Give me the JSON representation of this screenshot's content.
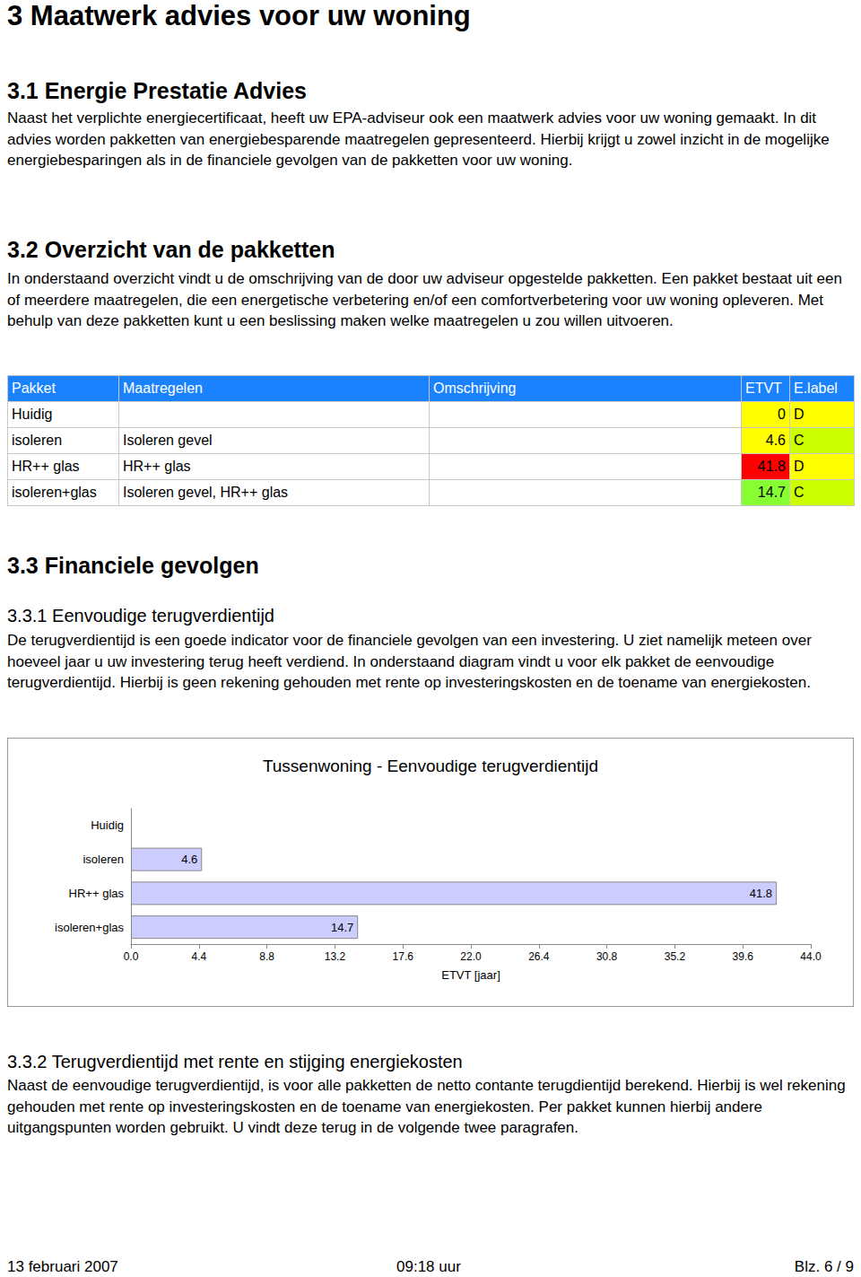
{
  "document": {
    "heading": "3 Maatwerk advies voor uw woning",
    "section_3_1": {
      "title": "3.1 Energie Prestatie Advies",
      "text": "Naast het verplichte energiecertificaat, heeft uw EPA-adviseur ook een maatwerk advies voor uw woning gemaakt. In dit advies worden pakketten van energiebesparende maatregelen gepresenteerd. Hierbij krijgt u zowel inzicht in de mogelijke energiebesparingen als in de financiele gevolgen van de pakketten voor uw woning."
    },
    "section_3_2": {
      "title": "3.2 Overzicht van de pakketten",
      "text": "In onderstaand overzicht vindt u de omschrijving van de door uw adviseur opgestelde pakketten. Een pakket bestaat uit een of meerdere maatregelen, die een energetische verbetering en/of een comfortverbetering voor uw woning opleveren. Met behulp van deze pakketten kunt u een beslissing maken welke maatregelen u zou willen uitvoeren.",
      "table": {
        "header": [
          "Pakket",
          "Maatregelen",
          "Omschrijving",
          "ETVT",
          "E.label"
        ],
        "rows": [
          [
            "Huidig",
            null,
            null,
            0,
            "D"
          ],
          [
            "isoleren",
            "Isoleren gevel",
            null,
            4.6,
            "C"
          ],
          [
            "HR++ glas",
            "HR++ glas",
            null,
            41.8,
            "D"
          ],
          [
            "isoleren+glas",
            "Isoleren gevel, HR++ glas",
            null,
            14.7,
            "C"
          ]
        ]
      }
    },
    "section_3_3": {
      "title": "3.3 Financiele gevolgen"
    },
    "section_3_3_1": {
      "title": "3.3.1 Eenvoudige terugverdientijd",
      "text": "De terugverdientijd is een goede indicator voor de financiele gevolgen van een investering. U ziet namelijk meteen over hoeveel jaar u uw investering terug heeft verdiend. In onderstaand diagram vindt u voor elk pakket de eenvoudige terugverdientijd. Hierbij is geen rekening gehouden met rente op investeringskosten en de toename van energiekosten."
    },
    "section_3_3_2": {
      "title": "3.3.2 Terugverdientijd met rente en stijging energiekosten",
      "text": "Naast de eenvoudige terugverdientijd, is voor alle pakketten de netto contante terugdientijd berekend. Hierbij is wel rekening gehouden met rente op investeringskosten en de toename van energiekosten. Per pakket kunnen hierbij andere uitgangspunten worden gebruikt. U vindt deze terug in de volgende twee paragrafen."
    },
    "footer": {
      "date": "13 februari 2007",
      "time": "09:18 uur",
      "page": "Blz. 6 / 9"
    }
  },
  "chart_data": {
    "type": "bar",
    "orientation": "horizontal",
    "title": "Tussenwoning - Eenvoudige terugverdientijd",
    "x_label": "ETVT [jaar]",
    "categories": [
      "Huidig",
      "isoleren",
      "HR++ glas",
      "isoleren+glas"
    ],
    "values": [
      null,
      4.6,
      41.8,
      14.7
    ],
    "color": "#ccccff",
    "xlim": [
      0,
      44
    ],
    "xticks": [
      {
        "value": 0,
        "label": "0.0"
      },
      4.4,
      8.8,
      13.2,
      17.6,
      {
        "value": 22,
        "label": "22.0"
      },
      26.4,
      30.8,
      35.2,
      39.6,
      {
        "value": 44,
        "label": "44.0"
      }
    ],
    "grid": false,
    "data_labels": true
  }
}
